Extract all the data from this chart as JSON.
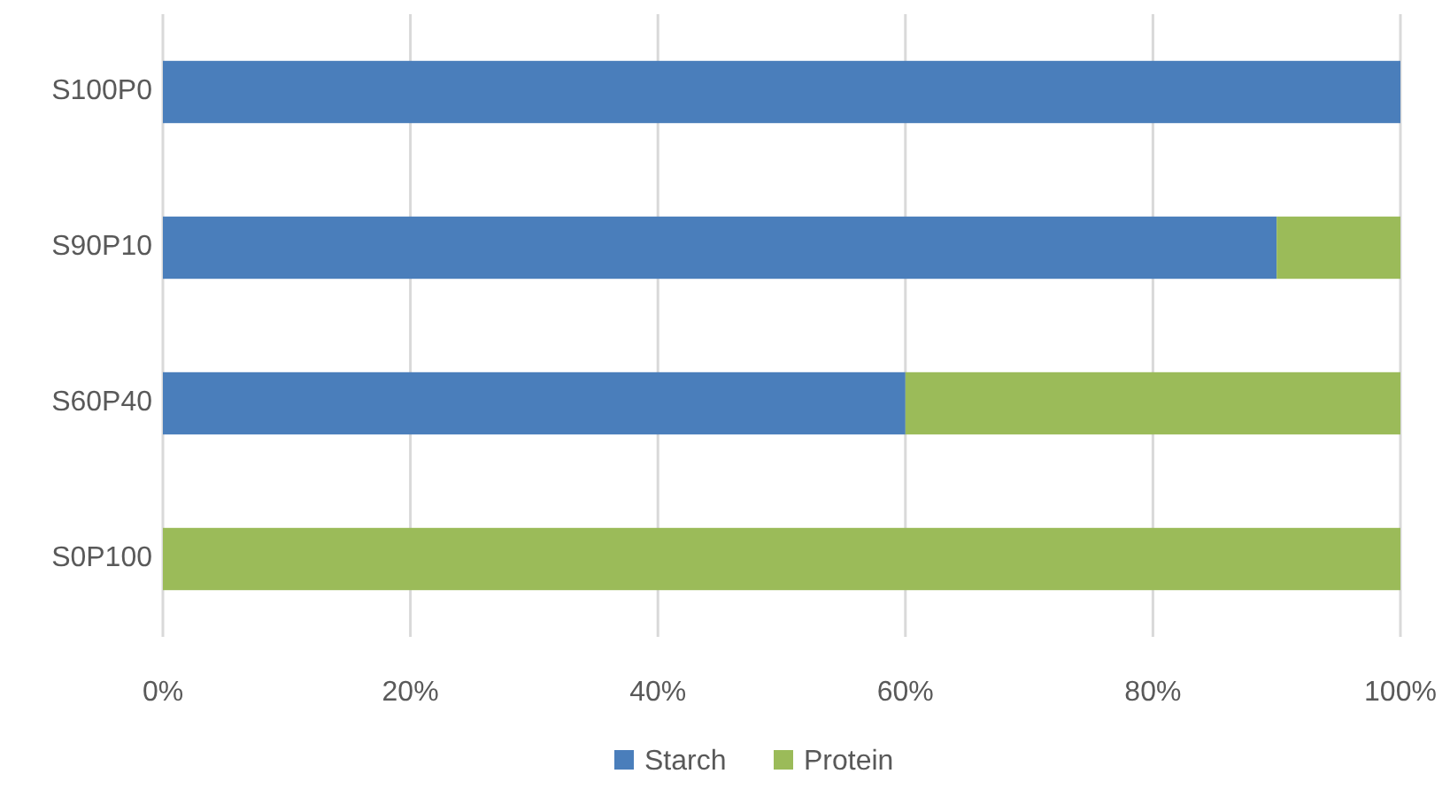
{
  "chart_data": {
    "type": "bar",
    "orientation": "horizontal",
    "stacked": true,
    "categories": [
      "S100P0",
      "S90P10",
      "S60P40",
      "S0P100"
    ],
    "series": [
      {
        "name": "Starch",
        "color": "#4a7ebb",
        "values": [
          100,
          90,
          60,
          0
        ]
      },
      {
        "name": "Protein",
        "color": "#9bbb59",
        "values": [
          0,
          10,
          40,
          100
        ]
      }
    ],
    "xlim": [
      0,
      100
    ],
    "xticks": [
      {
        "value": 0,
        "label": "0%"
      },
      {
        "value": 20,
        "label": "20%"
      },
      {
        "value": 40,
        "label": "40%"
      },
      {
        "value": 60,
        "label": "60%"
      },
      {
        "value": 80,
        "label": "80%"
      },
      {
        "value": 100,
        "label": "100%"
      }
    ],
    "grid": "x",
    "legend": "bottom"
  }
}
